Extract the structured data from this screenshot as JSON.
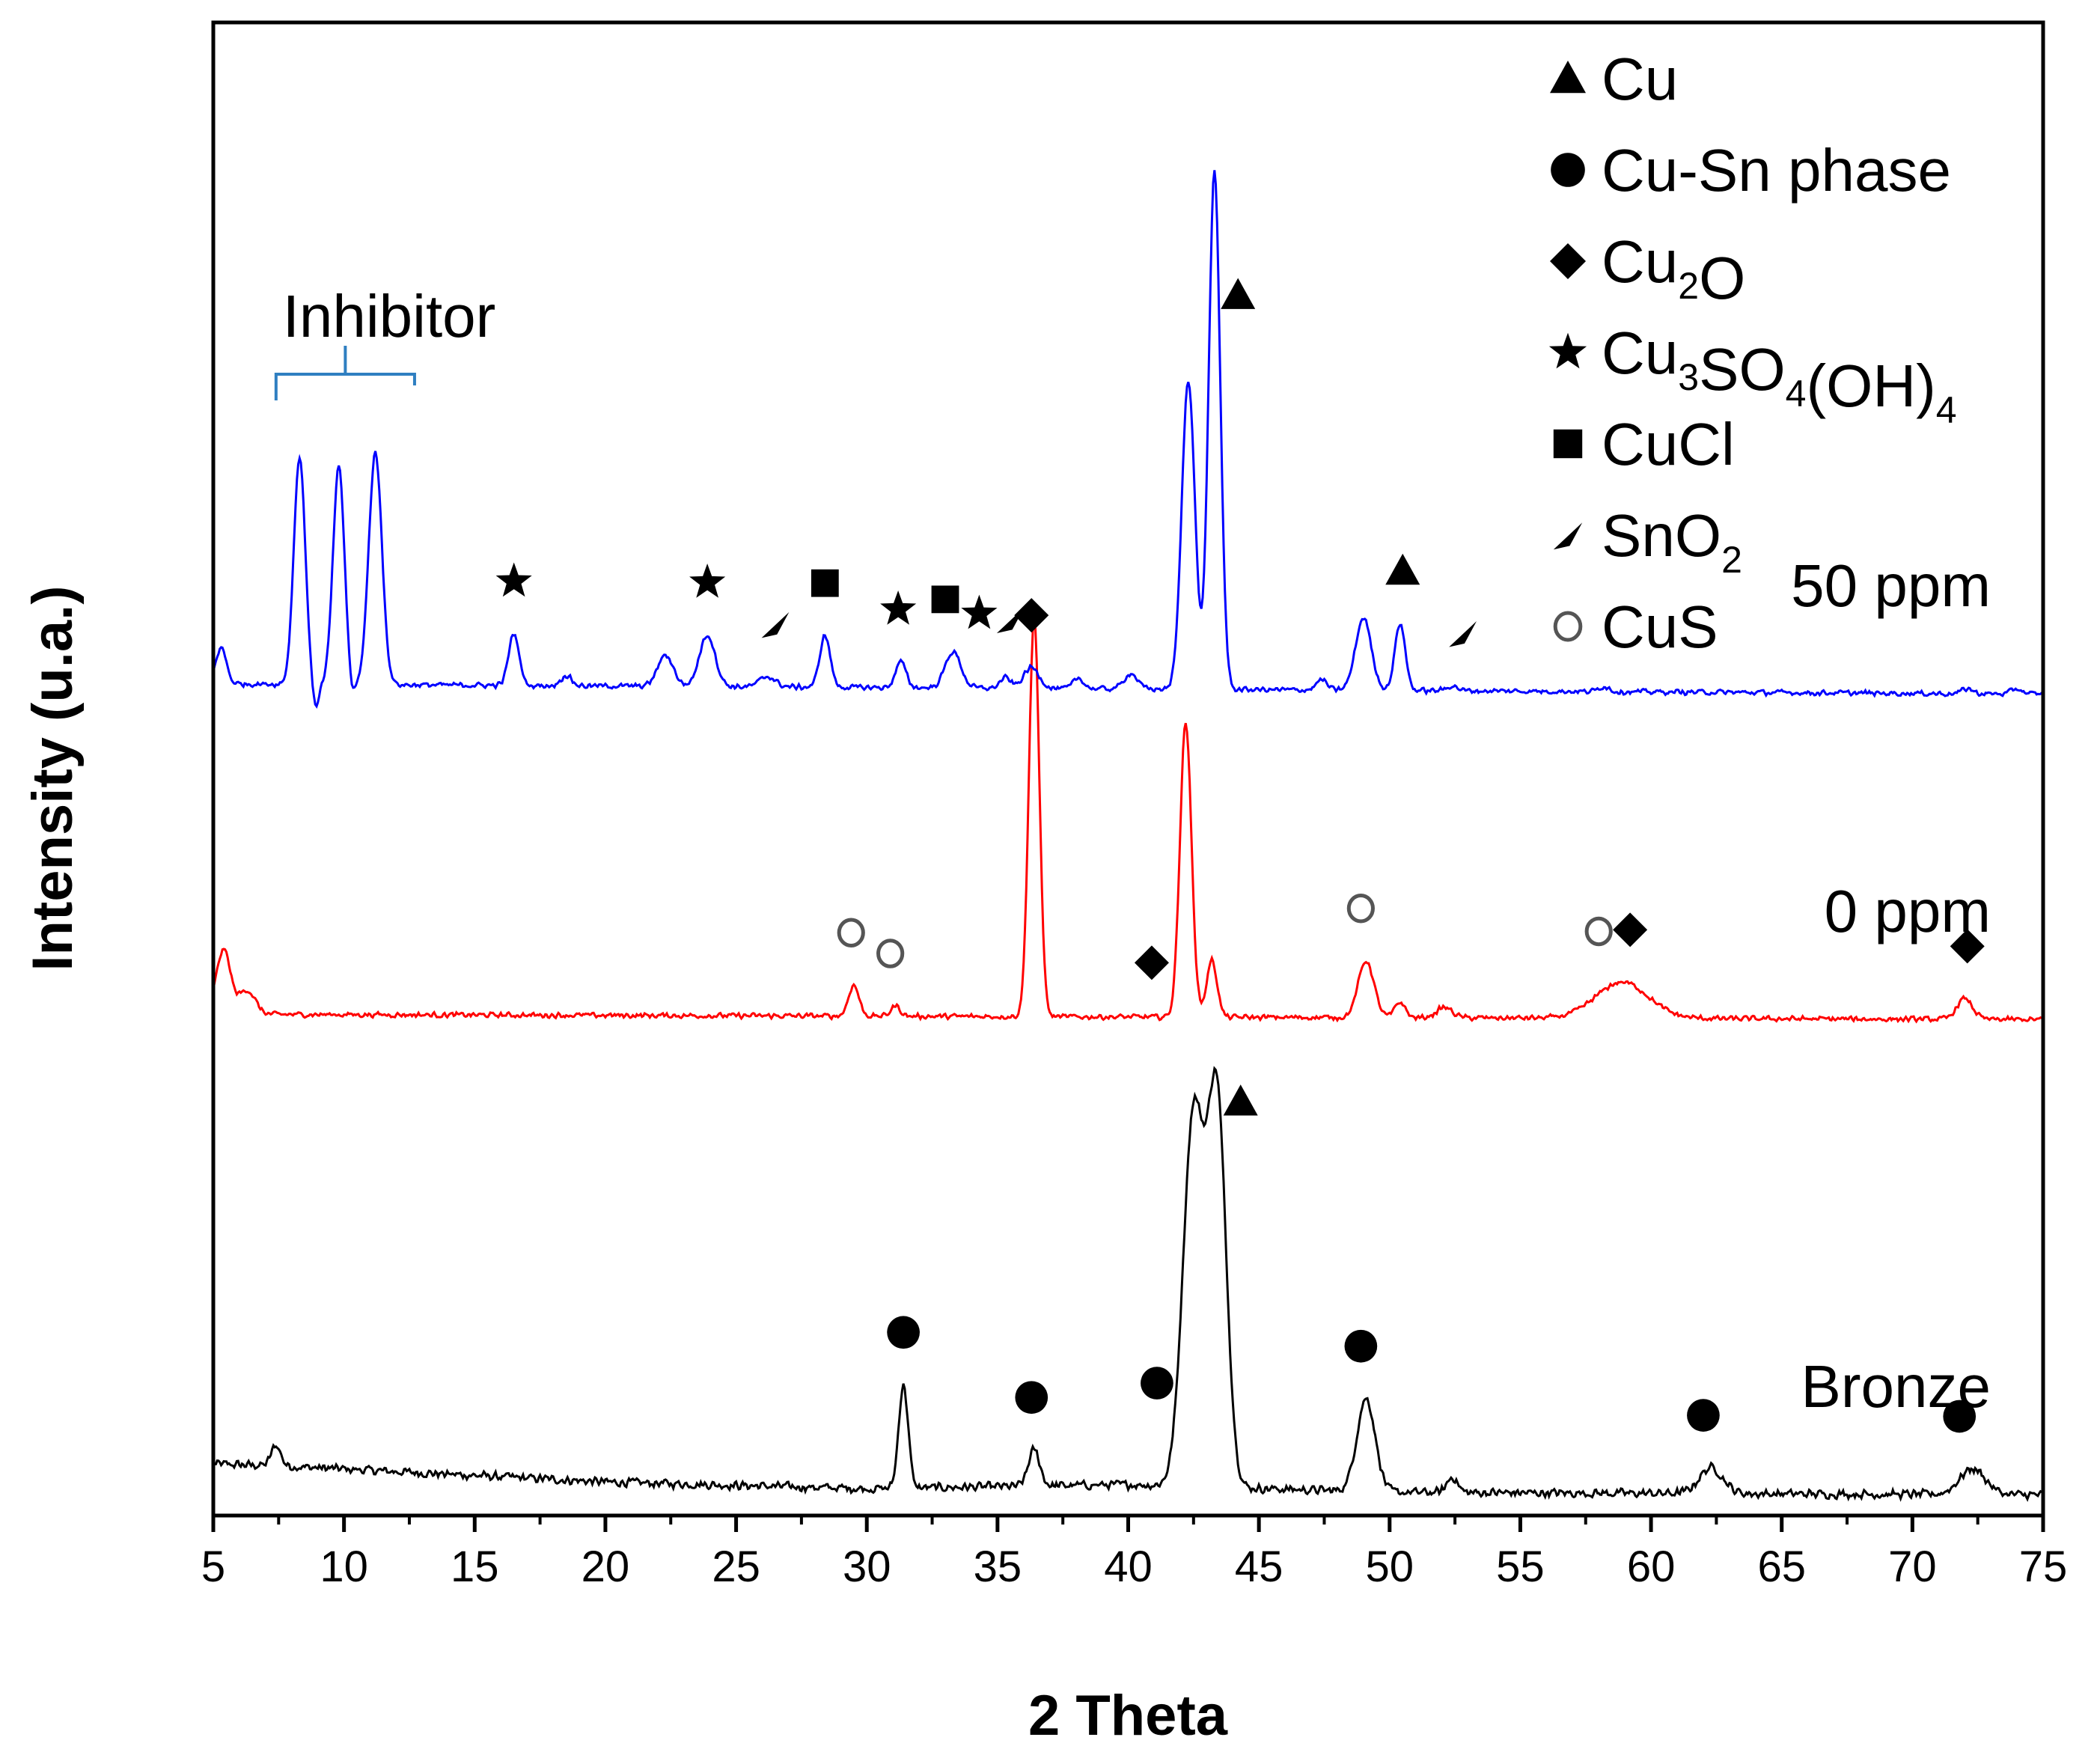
{
  "chart_data": {
    "type": "line",
    "title": "",
    "xlabel": "2 Theta",
    "ylabel": "Intensity (u.a.)",
    "xlim": [
      5,
      75
    ],
    "xticks": [
      "5",
      "10",
      "15",
      "20",
      "25",
      "30",
      "35",
      "40",
      "45",
      "50",
      "55",
      "60",
      "65",
      "70",
      "75"
    ],
    "grid": false,
    "colors": {
      "bronze": "#000000",
      "ppm0": "#ff0000",
      "ppm50": "#0000ff",
      "inhibitor_bracket": "#2f7fc1"
    },
    "series": [
      {
        "name": "Bronze",
        "color": "#000000",
        "baseline": 0.0,
        "noise": 0.01,
        "background": [
          [
            5,
            0.06
          ],
          [
            8,
            0.055
          ],
          [
            12,
            0.045
          ],
          [
            20,
            0.025
          ],
          [
            30,
            0.012
          ],
          [
            40,
            0.02
          ],
          [
            50,
            0.005
          ],
          [
            75,
            0.0
          ]
        ],
        "peaks": [
          {
            "x": 7.4,
            "h": 0.04,
            "w": 0.18
          },
          {
            "x": 31.4,
            "h": 0.2,
            "w": 0.18
          },
          {
            "x": 36.4,
            "h": 0.07,
            "w": 0.22
          },
          {
            "x": 42.5,
            "h": 0.72,
            "w": 0.4
          },
          {
            "x": 43.4,
            "h": 0.74,
            "w": 0.35
          },
          {
            "x": 49.1,
            "h": 0.18,
            "w": 0.35
          },
          {
            "x": 52.4,
            "h": 0.03,
            "w": 0.2
          },
          {
            "x": 62.3,
            "h": 0.05,
            "w": 0.45
          },
          {
            "x": 72.3,
            "h": 0.05,
            "w": 0.5
          }
        ]
      },
      {
        "name": "0 ppm",
        "color": "#ff0000",
        "baseline": 0.92,
        "noise": 0.006,
        "background": [
          [
            5,
            0.03
          ],
          [
            7,
            0.01
          ],
          [
            75,
            0.0
          ]
        ],
        "peaks": [
          {
            "x": 5.4,
            "h": 0.11,
            "w": 0.25
          },
          {
            "x": 6.3,
            "h": 0.04,
            "w": 0.3
          },
          {
            "x": 29.5,
            "h": 0.06,
            "w": 0.2
          },
          {
            "x": 31.1,
            "h": 0.02,
            "w": 0.18
          },
          {
            "x": 36.4,
            "h": 0.77,
            "w": 0.2
          },
          {
            "x": 42.2,
            "h": 0.57,
            "w": 0.22
          },
          {
            "x": 43.2,
            "h": 0.11,
            "w": 0.2
          },
          {
            "x": 49.1,
            "h": 0.11,
            "w": 0.3
          },
          {
            "x": 50.4,
            "h": 0.03,
            "w": 0.2
          },
          {
            "x": 52.1,
            "h": 0.02,
            "w": 0.3
          },
          {
            "x": 58.9,
            "h": 0.07,
            "w": 1.0
          },
          {
            "x": 72.0,
            "h": 0.04,
            "w": 0.3
          }
        ]
      },
      {
        "name": "50 ppm",
        "color": "#0000ff",
        "baseline": 1.55,
        "noise": 0.006,
        "background": [
          [
            5,
            0.02
          ],
          [
            75,
            0.0
          ]
        ],
        "peaks": [
          {
            "x": 5.3,
            "h": 0.07,
            "w": 0.2
          },
          {
            "x": 8.3,
            "h": 0.44,
            "w": 0.22
          },
          {
            "x": 8.9,
            "h": -0.05,
            "w": 0.12
          },
          {
            "x": 9.8,
            "h": 0.42,
            "w": 0.22
          },
          {
            "x": 10.3,
            "h": -0.03,
            "w": 0.12
          },
          {
            "x": 11.2,
            "h": 0.45,
            "w": 0.25
          },
          {
            "x": 16.5,
            "h": 0.1,
            "w": 0.2
          },
          {
            "x": 18.5,
            "h": 0.02,
            "w": 0.2
          },
          {
            "x": 22.3,
            "h": 0.06,
            "w": 0.3
          },
          {
            "x": 23.9,
            "h": 0.1,
            "w": 0.3
          },
          {
            "x": 26.2,
            "h": 0.02,
            "w": 0.3
          },
          {
            "x": 28.4,
            "h": 0.1,
            "w": 0.2
          },
          {
            "x": 31.3,
            "h": 0.05,
            "w": 0.2
          },
          {
            "x": 33.3,
            "h": 0.07,
            "w": 0.3
          },
          {
            "x": 35.3,
            "h": 0.02,
            "w": 0.2
          },
          {
            "x": 36.3,
            "h": 0.04,
            "w": 0.3
          },
          {
            "x": 38.1,
            "h": 0.02,
            "w": 0.2
          },
          {
            "x": 40.1,
            "h": 0.03,
            "w": 0.25
          },
          {
            "x": 42.3,
            "h": 0.6,
            "w": 0.25
          },
          {
            "x": 43.3,
            "h": 1.0,
            "w": 0.22
          },
          {
            "x": 47.4,
            "h": 0.02,
            "w": 0.2
          },
          {
            "x": 49.0,
            "h": 0.14,
            "w": 0.3
          },
          {
            "x": 50.4,
            "h": 0.13,
            "w": 0.2
          },
          {
            "x": 52.4,
            "h": 0.01,
            "w": 0.2
          },
          {
            "x": 58.2,
            "h": 0.01,
            "w": 0.2
          },
          {
            "x": 72.1,
            "h": 0.01,
            "w": 0.2
          },
          {
            "x": 74.0,
            "h": 0.01,
            "w": 0.2
          }
        ]
      }
    ],
    "series_labels": [
      "50 ppm",
      "0 ppm",
      "Bronze"
    ],
    "inhibitor_label": "Inhibitor",
    "inhibitor_range": [
      7.4,
      12.7
    ],
    "legend": [
      {
        "symbol": "triangle",
        "text": "Cu"
      },
      {
        "symbol": "circle",
        "text": "Cu-Sn phase"
      },
      {
        "symbol": "diamond",
        "text": "Cu",
        "sub": "2",
        "suffix": "O"
      },
      {
        "symbol": "star",
        "text": "Cu",
        "sub": "3",
        "suffix": "SO",
        "sub2": "4",
        "suffix2": "(OH)",
        "sub3": "4"
      },
      {
        "symbol": "square",
        "text": "CuCl"
      },
      {
        "symbol": "wedge",
        "text": "SnO",
        "sub": "2"
      },
      {
        "symbol": "ring",
        "text": "CuS"
      }
    ],
    "legend_position": "top-right",
    "markers": [
      {
        "series": "50 ppm",
        "x": 44.2,
        "symbol": "triangle",
        "label": "Cu"
      },
      {
        "series": "50 ppm",
        "x": 16.5,
        "symbol": "star",
        "label": "Cu3SO4(OH)4"
      },
      {
        "series": "50 ppm",
        "x": 23.9,
        "symbol": "star",
        "label": "Cu3SO4(OH)4"
      },
      {
        "series": "50 ppm",
        "x": 26.5,
        "symbol": "wedge",
        "label": "SnO2"
      },
      {
        "series": "50 ppm",
        "x": 28.4,
        "symbol": "square",
        "label": "CuCl"
      },
      {
        "series": "50 ppm",
        "x": 31.2,
        "symbol": "star",
        "label": "Cu3SO4(OH)4"
      },
      {
        "series": "50 ppm",
        "x": 33.0,
        "symbol": "square",
        "label": "CuCl"
      },
      {
        "series": "50 ppm",
        "x": 34.3,
        "symbol": "star",
        "label": "Cu3SO4(OH)4"
      },
      {
        "series": "50 ppm",
        "x": 35.5,
        "symbol": "wedge",
        "label": "SnO2"
      },
      {
        "series": "50 ppm",
        "x": 36.3,
        "symbol": "diamond",
        "label": "Cu2O"
      },
      {
        "series": "50 ppm",
        "x": 50.5,
        "symbol": "triangle",
        "label": "Cu"
      },
      {
        "series": "50 ppm",
        "x": 52.8,
        "symbol": "wedge",
        "label": "SnO2"
      },
      {
        "series": "0 ppm",
        "x": 40.9,
        "symbol": "diamond",
        "label": "Cu2O"
      },
      {
        "series": "0 ppm",
        "x": 29.4,
        "symbol": "ring",
        "label": "CuS"
      },
      {
        "series": "0 ppm",
        "x": 30.9,
        "symbol": "ring",
        "label": "CuS"
      },
      {
        "series": "0 ppm",
        "x": 48.9,
        "symbol": "ring",
        "label": "CuS"
      },
      {
        "series": "0 ppm",
        "x": 58.0,
        "symbol": "ring",
        "label": "CuS"
      },
      {
        "series": "0 ppm",
        "x": 59.2,
        "symbol": "diamond",
        "label": "Cu2O"
      },
      {
        "series": "0 ppm",
        "x": 72.1,
        "symbol": "diamond",
        "label": "Cu2O"
      },
      {
        "series": "Bronze",
        "x": 41.1,
        "symbol": "circle",
        "label": "Cu-Sn phase"
      },
      {
        "series": "Bronze",
        "x": 44.3,
        "symbol": "triangle",
        "label": "Cu"
      },
      {
        "series": "Bronze",
        "x": 31.4,
        "symbol": "circle",
        "label": "Cu-Sn phase"
      },
      {
        "series": "Bronze",
        "x": 36.3,
        "symbol": "circle",
        "label": "Cu-Sn phase"
      },
      {
        "series": "Bronze",
        "x": 48.9,
        "symbol": "circle",
        "label": "Cu-Sn phase"
      },
      {
        "series": "Bronze",
        "x": 62.0,
        "symbol": "circle",
        "label": "Cu-Sn phase"
      },
      {
        "series": "Bronze",
        "x": 71.8,
        "symbol": "circle",
        "label": "Cu-Sn phase"
      }
    ]
  }
}
